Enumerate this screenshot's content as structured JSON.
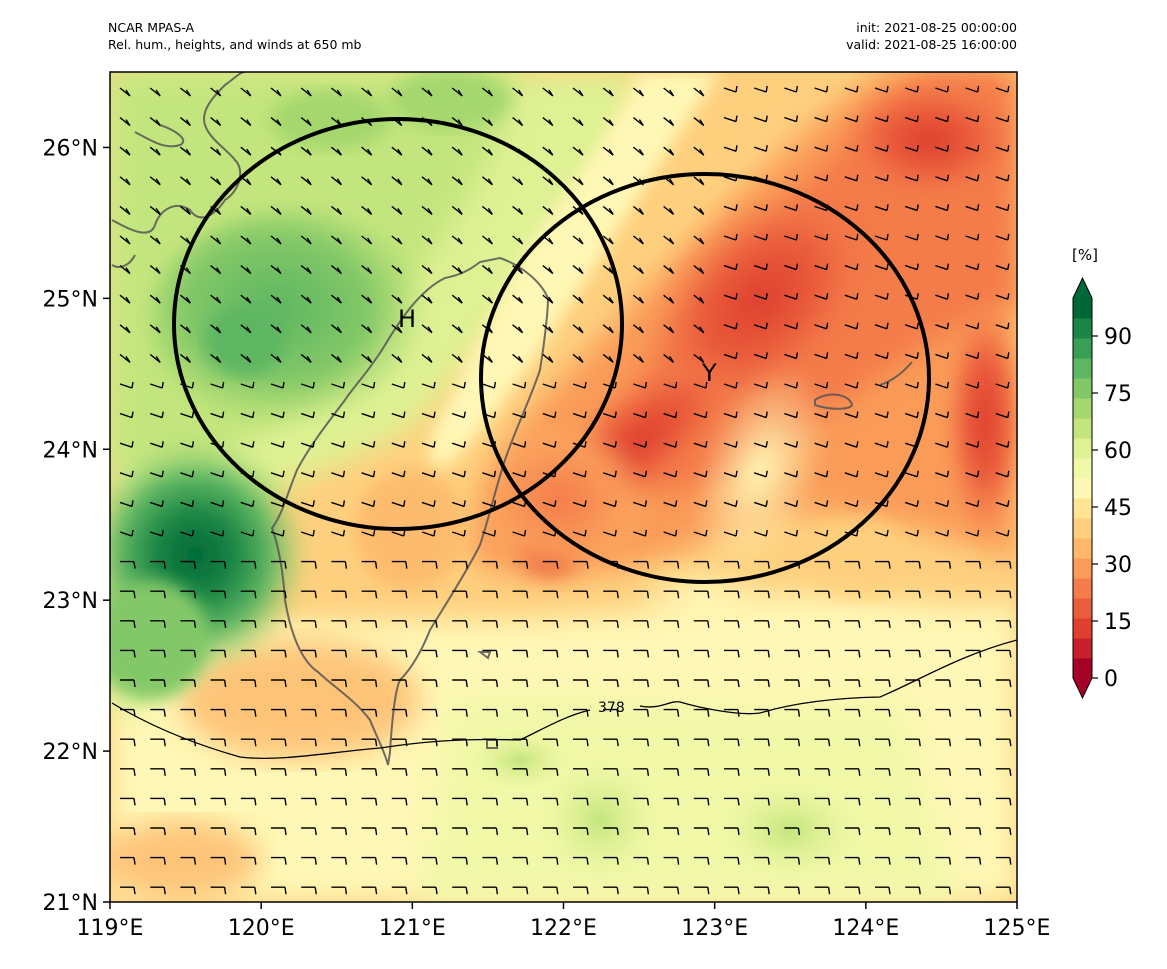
{
  "header": {
    "left_line1": "NCAR MPAS-A",
    "left_line2": "Rel. hum., heights, and winds at 650 mb",
    "right_line1": "init: 2021-08-25 00:00:00",
    "right_line2": "valid: 2021-08-25 16:00:00"
  },
  "map": {
    "lon_range": [
      119,
      125
    ],
    "lat_range": [
      21,
      26.5
    ],
    "lon_ticks": [
      "119°E",
      "120°E",
      "121°E",
      "122°E",
      "123°E",
      "124°E",
      "125°E"
    ],
    "lat_ticks": [
      "21°N",
      "22°N",
      "23°N",
      "24°N",
      "25°N",
      "26°N"
    ],
    "contour_label": "378",
    "circles": [
      {
        "label": "H",
        "center_lon": 120.93,
        "center_lat": 24.83
      },
      {
        "label": "Y",
        "center_lon": 122.95,
        "center_lat": 24.47
      }
    ]
  },
  "colorbar": {
    "units": "[%]",
    "min": 0,
    "max": 100,
    "tick_labels": [
      "0",
      "15",
      "30",
      "45",
      "60",
      "75",
      "90"
    ],
    "colors": [
      "#a50026",
      "#c8202a",
      "#de3f2e",
      "#ea5d3c",
      "#f47b4a",
      "#fa9b59",
      "#fdb86a",
      "#fed07e",
      "#fee594",
      "#fff7b5",
      "#f1f8a8",
      "#def193",
      "#c3e57d",
      "#a4d76d",
      "#83c867",
      "#5db662",
      "#389f55",
      "#1b8645",
      "#006837"
    ]
  }
}
